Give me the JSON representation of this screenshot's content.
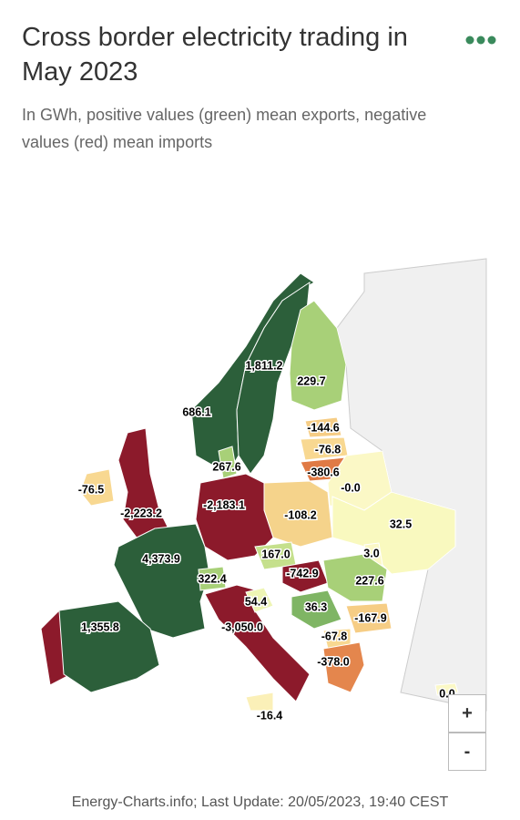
{
  "header": {
    "title": "Cross border electricity trading in May 2023",
    "subtitle": "In GWh, positive values (green) mean exports, negative values (red) mean imports"
  },
  "map": {
    "regions": [
      {
        "value": 686.1,
        "label": "686.1",
        "color": "#2c5f3a"
      },
      {
        "value": 1811.2,
        "label": "1,811.2",
        "color": "#2c5f3a"
      },
      {
        "value": 229.7,
        "label": "229.7",
        "color": "#a8d078"
      },
      {
        "value": -144.6,
        "label": "-144.6",
        "color": "#f6cd85"
      },
      {
        "value": -76.8,
        "label": "-76.8",
        "color": "#f8d891"
      },
      {
        "value": -380.6,
        "label": "-380.6",
        "color": "#e07a45"
      },
      {
        "value": -0.0,
        "label": "-0.0",
        "color": "#fbf8c6"
      },
      {
        "value": -108.2,
        "label": "-108.2",
        "color": "#f5d38b"
      },
      {
        "value": 32.5,
        "label": "32.5",
        "color": "#f9f9bf"
      },
      {
        "value": -2183.1,
        "label": "-2,183.1",
        "color": "#8c1a2b"
      },
      {
        "value": 267.6,
        "label": "267.6",
        "color": "#a8d078"
      },
      {
        "value": -2223.2,
        "label": "-2,223.2",
        "color": "#8c1a2b"
      },
      {
        "value": -76.5,
        "label": "-76.5",
        "color": "#f8d891"
      },
      {
        "value": 4373.9,
        "label": "4,373.9",
        "color": "#2c5f3a"
      },
      {
        "value": 1355.8,
        "label": "1,355.8",
        "color": "#2c5f3a"
      },
      {
        "value": 322.4,
        "label": "322.4",
        "color": "#a8d078"
      },
      {
        "value": -3050.0,
        "label": "-3,050.0",
        "color": "#8c1a2b"
      },
      {
        "value": 167.0,
        "label": "167.0",
        "color": "#c5e08c"
      },
      {
        "value": -742.9,
        "label": "-742.9",
        "color": "#8c1a2b"
      },
      {
        "value": 3.0,
        "label": "3.0",
        "color": "#fbf8c6"
      },
      {
        "value": 227.6,
        "label": "227.6",
        "color": "#a8d078"
      },
      {
        "value": 54.4,
        "label": "54.4",
        "color": "#eef5b4"
      },
      {
        "value": 36.3,
        "label": "36.3",
        "color": "#7fb564"
      },
      {
        "value": -167.9,
        "label": "-167.9",
        "color": "#f6cd85"
      },
      {
        "value": -67.8,
        "label": "-67.8",
        "color": "#f8d891"
      },
      {
        "value": -378.0,
        "label": "-378.0",
        "color": "#e4864d"
      },
      {
        "value": -16.4,
        "label": "-16.4",
        "color": "#fbf0b8"
      },
      {
        "value": 0.0,
        "label": "0.0",
        "color": "#fbf8c6"
      }
    ]
  },
  "controls": {
    "zoom_in": "+",
    "zoom_out": "-"
  },
  "footer": "Energy-Charts.info; Last Update: 20/05/2023, 19:40 CEST"
}
